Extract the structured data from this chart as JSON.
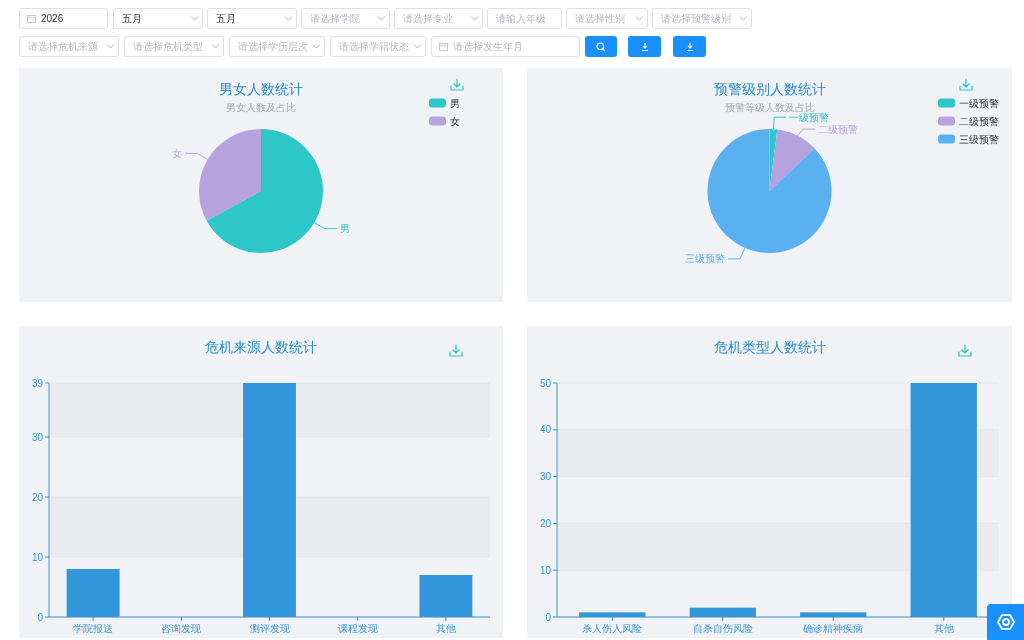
{
  "chart_data": [
    {
      "type": "other",
      "annotations": [
        "2026",
        "五月",
        "五月",
        "请选择学院",
        "请选择专业",
        "请输入年级",
        "请选择性别",
        "请选择预警级别",
        "请选择危机来源",
        "请选择危机类型",
        "请选择学历层次",
        "请选择学籍状态",
        "请选择发生年月"
      ]
    },
    {
      "type": "pie",
      "title": "男女人数统计",
      "subtitle": "男女人数及占比",
      "categories": [
        "男",
        "女"
      ],
      "values": [
        67,
        33
      ],
      "colors": [
        "#2ec7c9",
        "#b6a2de"
      ],
      "legend": "top right"
    },
    {
      "type": "pie",
      "title": "预警级别人数统计",
      "subtitle": "预警等级人数及占比",
      "categories": [
        "一级预警",
        "二级预警",
        "三级预警"
      ],
      "values": [
        2,
        11,
        87
      ],
      "colors": [
        "#2ec7c9",
        "#b6a2de",
        "#5ab1ef"
      ],
      "legend": "top right"
    },
    {
      "type": "bar",
      "title": "危机来源人数统计",
      "categories": [
        "学院报送",
        "咨询发现",
        "测评发现",
        "课程发现",
        "其他"
      ],
      "values": [
        8,
        0,
        39,
        0,
        7
      ],
      "color": "#3296da",
      "ylim": [
        0,
        39
      ],
      "yticks": [
        0,
        10,
        20,
        30,
        39
      ],
      "grid": "y"
    },
    {
      "type": "bar",
      "title": "危机类型人数统计",
      "categories": [
        "杀人伤人风险",
        "自杀自伤风险",
        "确诊精神疾病",
        "其他"
      ],
      "values": [
        1,
        2,
        1,
        50
      ],
      "color": "#3296da",
      "ylim": [
        0,
        50
      ],
      "yticks": [
        0,
        10,
        20,
        30,
        40,
        50
      ],
      "grid": "y"
    }
  ]
}
